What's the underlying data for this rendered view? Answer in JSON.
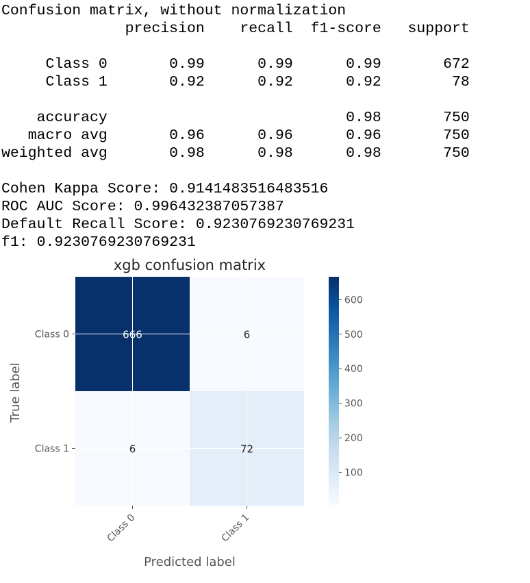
{
  "report": {
    "lines": [
      "Confusion matrix, without normalization",
      "              precision    recall  f1-score   support",
      "",
      "     Class 0       0.99      0.99      0.99       672",
      "     Class 1       0.92      0.92      0.92        78",
      "",
      "    accuracy                           0.98       750",
      "   macro avg       0.96      0.96      0.96       750",
      "weighted avg       0.98      0.98      0.98       750",
      "",
      "Cohen Kappa Score: 0.9141483516483516",
      "ROC AUC Score: 0.996432387057387",
      "Default Recall Score: 0.9230769230769231",
      "f1: 0.9230769230769231"
    ]
  },
  "chart_data": {
    "type": "heatmap",
    "title": "xgb confusion matrix",
    "xlabel": "Predicted label",
    "ylabel": "True label",
    "x_categories": [
      "Class 0",
      "Class 1"
    ],
    "y_categories": [
      "Class 0",
      "Class 1"
    ],
    "values": [
      [
        666,
        6
      ],
      [
        6,
        72
      ]
    ],
    "colormap": "Blues",
    "colorbar": {
      "min": 6,
      "max": 666,
      "ticks": [
        100,
        200,
        300,
        400,
        500,
        600
      ]
    },
    "grid": true,
    "colors": {
      "dark": "#08306b",
      "light": "#f7fbff",
      "text_dark": "#262626",
      "text_light": "#ffffff"
    }
  }
}
